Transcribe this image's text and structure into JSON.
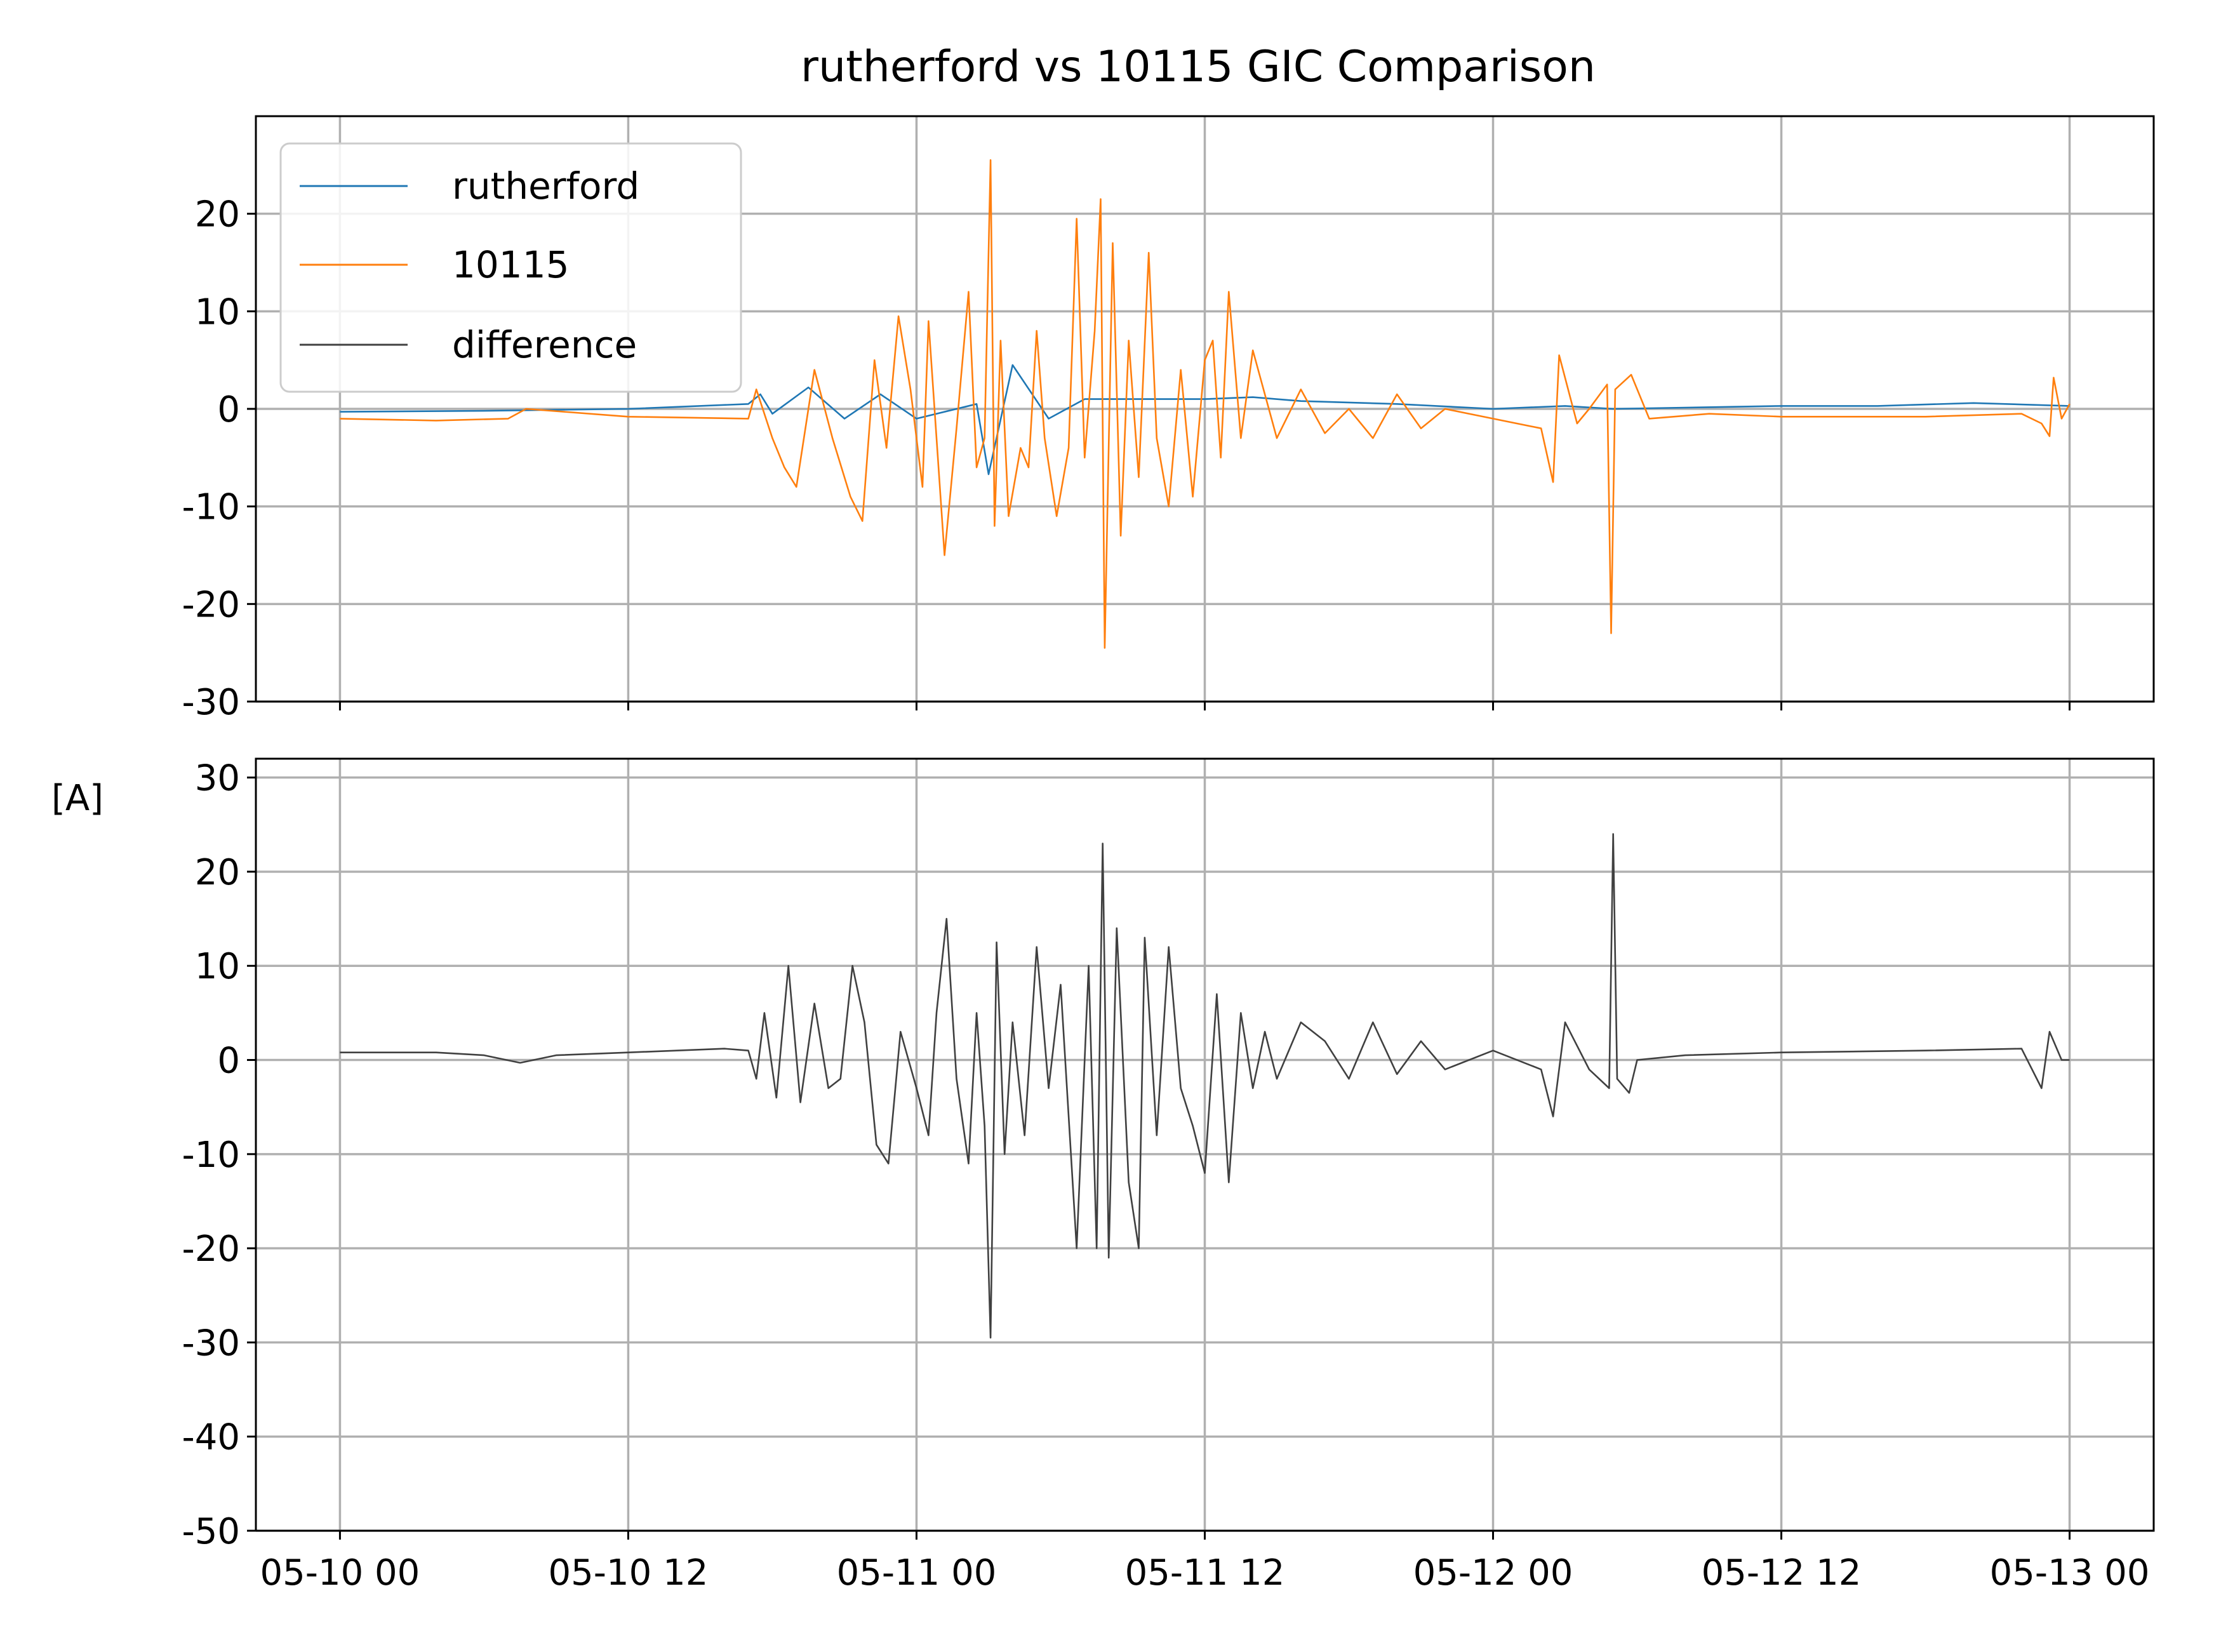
{
  "chart_data": {
    "title": "rutherford vs 10115 GIC Comparison",
    "ylabel": "[A]",
    "x_tick_labels": [
      "05-10 00",
      "05-10 12",
      "05-11 00",
      "05-11 12",
      "05-12 00",
      "05-12 12",
      "05-13 00"
    ],
    "x_range": [
      "2024-05-09 20:30",
      "2024-05-13 03:30"
    ],
    "grid": true,
    "legend_position": "upper-left",
    "panels": [
      {
        "type": "line",
        "position": "top",
        "ylim": [
          -30,
          30
        ],
        "y_ticks": [
          -30,
          -20,
          -10,
          0,
          10,
          20
        ],
        "y_tick_labels": [
          "-30",
          "-20",
          "-10",
          "0",
          "10",
          "20"
        ],
        "series": [
          {
            "name": "rutherford",
            "color": "#1f77b4",
            "points": [
              [
                "2024-05-10 00:00",
                -0.3
              ],
              [
                "2024-05-10 06:00",
                -0.2
              ],
              [
                "2024-05-10 12:00",
                0
              ],
              [
                "2024-05-10 17:00",
                0.5
              ],
              [
                "2024-05-10 17:30",
                1.5
              ],
              [
                "2024-05-10 18:00",
                -0.5
              ],
              [
                "2024-05-10 19:30",
                2.2
              ],
              [
                "2024-05-10 21:00",
                -1
              ],
              [
                "2024-05-10 22:30",
                1.5
              ],
              [
                "2024-05-11 00:00",
                -1
              ],
              [
                "2024-05-11 02:30",
                0.5
              ],
              [
                "2024-05-11 03:00",
                -6.7
              ],
              [
                "2024-05-11 04:00",
                4.5
              ],
              [
                "2024-05-11 05:30",
                -1
              ],
              [
                "2024-05-11 07:00",
                1
              ],
              [
                "2024-05-11 09:00",
                1
              ],
              [
                "2024-05-11 12:00",
                1
              ],
              [
                "2024-05-11 14:00",
                1.2
              ],
              [
                "2024-05-11 16:00",
                0.8
              ],
              [
                "2024-05-11 20:00",
                0.5
              ],
              [
                "2024-05-12 00:00",
                0
              ],
              [
                "2024-05-12 03:00",
                0.3
              ],
              [
                "2024-05-12 05:00",
                0
              ],
              [
                "2024-05-12 12:00",
                0.3
              ],
              [
                "2024-05-12 16:00",
                0.3
              ],
              [
                "2024-05-12 20:00",
                0.6
              ],
              [
                "2024-05-13 00:00",
                0.3
              ]
            ]
          },
          {
            "name": "10115",
            "color": "#ff7f0e",
            "points": [
              [
                "2024-05-10 00:00",
                -1
              ],
              [
                "2024-05-10 04:00",
                -1.2
              ],
              [
                "2024-05-10 07:00",
                -1
              ],
              [
                "2024-05-10 07:45",
                0
              ],
              [
                "2024-05-10 12:00",
                -0.8
              ],
              [
                "2024-05-10 17:00",
                -1
              ],
              [
                "2024-05-10 17:20",
                2
              ],
              [
                "2024-05-10 18:00",
                -3
              ],
              [
                "2024-05-10 18:30",
                -6
              ],
              [
                "2024-05-10 19:00",
                -8
              ],
              [
                "2024-05-10 19:45",
                4
              ],
              [
                "2024-05-10 20:30",
                -3
              ],
              [
                "2024-05-10 21:15",
                -9
              ],
              [
                "2024-05-10 21:45",
                -11.5
              ],
              [
                "2024-05-10 22:15",
                5
              ],
              [
                "2024-05-10 22:45",
                -4
              ],
              [
                "2024-05-10 23:15",
                9.5
              ],
              [
                "2024-05-10 23:45",
                2
              ],
              [
                "2024-05-11 00:15",
                -8
              ],
              [
                "2024-05-11 00:30",
                9
              ],
              [
                "2024-05-11 00:50",
                -3
              ],
              [
                "2024-05-11 01:10",
                -15
              ],
              [
                "2024-05-11 01:40",
                -2
              ],
              [
                "2024-05-11 02:10",
                12
              ],
              [
                "2024-05-11 02:30",
                -6
              ],
              [
                "2024-05-11 02:50",
                -3
              ],
              [
                "2024-05-11 03:05",
                25.5
              ],
              [
                "2024-05-11 03:15",
                -12
              ],
              [
                "2024-05-11 03:30",
                7
              ],
              [
                "2024-05-11 03:50",
                -11
              ],
              [
                "2024-05-11 04:20",
                -4
              ],
              [
                "2024-05-11 04:40",
                -6
              ],
              [
                "2024-05-11 05:00",
                8
              ],
              [
                "2024-05-11 05:20",
                -3
              ],
              [
                "2024-05-11 05:50",
                -11
              ],
              [
                "2024-05-11 06:20",
                -4
              ],
              [
                "2024-05-11 06:40",
                19.5
              ],
              [
                "2024-05-11 07:00",
                -5
              ],
              [
                "2024-05-11 07:25",
                8
              ],
              [
                "2024-05-11 07:40",
                21.5
              ],
              [
                "2024-05-11 07:50",
                -24.5
              ],
              [
                "2024-05-11 08:10",
                17
              ],
              [
                "2024-05-11 08:30",
                -13
              ],
              [
                "2024-05-11 08:50",
                7
              ],
              [
                "2024-05-11 09:15",
                -7
              ],
              [
                "2024-05-11 09:40",
                16
              ],
              [
                "2024-05-11 10:00",
                -3
              ],
              [
                "2024-05-11 10:30",
                -10
              ],
              [
                "2024-05-11 11:00",
                4
              ],
              [
                "2024-05-11 11:30",
                -9
              ],
              [
                "2024-05-11 12:00",
                5
              ],
              [
                "2024-05-11 12:20",
                7
              ],
              [
                "2024-05-11 12:40",
                -5
              ],
              [
                "2024-05-11 13:00",
                12
              ],
              [
                "2024-05-11 13:30",
                -3
              ],
              [
                "2024-05-11 14:00",
                6
              ],
              [
                "2024-05-11 15:00",
                -3
              ],
              [
                "2024-05-11 16:00",
                2
              ],
              [
                "2024-05-11 17:00",
                -2.5
              ],
              [
                "2024-05-11 18:00",
                0
              ],
              [
                "2024-05-11 19:00",
                -3
              ],
              [
                "2024-05-11 20:00",
                1.5
              ],
              [
                "2024-05-11 21:00",
                -2
              ],
              [
                "2024-05-11 22:00",
                0
              ],
              [
                "2024-05-12 00:00",
                -1
              ],
              [
                "2024-05-12 02:00",
                -2
              ],
              [
                "2024-05-12 02:30",
                -7.5
              ],
              [
                "2024-05-12 02:45",
                5.5
              ],
              [
                "2024-05-12 03:30",
                -1.5
              ],
              [
                "2024-05-12 04:00",
                0
              ],
              [
                "2024-05-12 04:45",
                2.5
              ],
              [
                "2024-05-12 04:55",
                -23
              ],
              [
                "2024-05-12 05:05",
                2
              ],
              [
                "2024-05-12 05:45",
                3.5
              ],
              [
                "2024-05-12 06:30",
                -1
              ],
              [
                "2024-05-12 09:00",
                -0.5
              ],
              [
                "2024-05-12 12:00",
                -0.8
              ],
              [
                "2024-05-12 18:00",
                -0.8
              ],
              [
                "2024-05-12 22:00",
                -0.5
              ],
              [
                "2024-05-12 22:50",
                -1.5
              ],
              [
                "2024-05-12 23:10",
                -2.8
              ],
              [
                "2024-05-12 23:20",
                3.2
              ],
              [
                "2024-05-12 23:40",
                -1
              ],
              [
                "2024-05-13 00:00",
                0.5
              ]
            ]
          }
        ]
      },
      {
        "type": "line",
        "position": "bottom",
        "ylim": [
          -50,
          32
        ],
        "y_ticks": [
          -50,
          -40,
          -30,
          -20,
          -10,
          0,
          10,
          20,
          30
        ],
        "y_tick_labels": [
          "-50",
          "-40",
          "-30",
          "-20",
          "-10",
          "0",
          "10",
          "20",
          "30"
        ],
        "series": [
          {
            "name": "difference",
            "color": "#404040",
            "points": [
              [
                "2024-05-10 00:00",
                0.8
              ],
              [
                "2024-05-10 04:00",
                0.8
              ],
              [
                "2024-05-10 06:00",
                0.5
              ],
              [
                "2024-05-10 07:30",
                -0.3
              ],
              [
                "2024-05-10 09:00",
                0.5
              ],
              [
                "2024-05-10 12:00",
                0.8
              ],
              [
                "2024-05-10 16:00",
                1.2
              ],
              [
                "2024-05-10 17:00",
                1
              ],
              [
                "2024-05-10 17:20",
                -2
              ],
              [
                "2024-05-10 17:40",
                5
              ],
              [
                "2024-05-10 18:10",
                -4
              ],
              [
                "2024-05-10 18:40",
                10
              ],
              [
                "2024-05-10 19:10",
                -4.5
              ],
              [
                "2024-05-10 19:45",
                6
              ],
              [
                "2024-05-10 20:20",
                -3
              ],
              [
                "2024-05-10 20:50",
                -2
              ],
              [
                "2024-05-10 21:20",
                10
              ],
              [
                "2024-05-10 21:50",
                4
              ],
              [
                "2024-05-10 22:20",
                -9
              ],
              [
                "2024-05-10 22:50",
                -11
              ],
              [
                "2024-05-10 23:20",
                3
              ],
              [
                "2024-05-11 00:00",
                -3
              ],
              [
                "2024-05-11 00:30",
                -8
              ],
              [
                "2024-05-11 00:50",
                5
              ],
              [
                "2024-05-11 01:15",
                15
              ],
              [
                "2024-05-11 01:40",
                -2
              ],
              [
                "2024-05-11 02:10",
                -11
              ],
              [
                "2024-05-11 02:30",
                5
              ],
              [
                "2024-05-11 02:50",
                -7
              ],
              [
                "2024-05-11 03:05",
                -29.5
              ],
              [
                "2024-05-11 03:20",
                12.5
              ],
              [
                "2024-05-11 03:40",
                -10
              ],
              [
                "2024-05-11 04:00",
                4
              ],
              [
                "2024-05-11 04:30",
                -8
              ],
              [
                "2024-05-11 05:00",
                12
              ],
              [
                "2024-05-11 05:30",
                -3
              ],
              [
                "2024-05-11 06:00",
                8
              ],
              [
                "2024-05-11 06:40",
                -20
              ],
              [
                "2024-05-11 07:10",
                10
              ],
              [
                "2024-05-11 07:30",
                -20
              ],
              [
                "2024-05-11 07:45",
                23
              ],
              [
                "2024-05-11 08:00",
                -21
              ],
              [
                "2024-05-11 08:20",
                14
              ],
              [
                "2024-05-11 08:50",
                -13
              ],
              [
                "2024-05-11 09:15",
                -20
              ],
              [
                "2024-05-11 09:30",
                13
              ],
              [
                "2024-05-11 10:00",
                -8
              ],
              [
                "2024-05-11 10:30",
                12
              ],
              [
                "2024-05-11 11:00",
                -3
              ],
              [
                "2024-05-11 11:30",
                -7
              ],
              [
                "2024-05-11 12:00",
                -12
              ],
              [
                "2024-05-11 12:30",
                7
              ],
              [
                "2024-05-11 13:00",
                -13
              ],
              [
                "2024-05-11 13:30",
                5
              ],
              [
                "2024-05-11 14:00",
                -3
              ],
              [
                "2024-05-11 14:30",
                3
              ],
              [
                "2024-05-11 15:00",
                -2
              ],
              [
                "2024-05-11 16:00",
                4
              ],
              [
                "2024-05-11 17:00",
                2
              ],
              [
                "2024-05-11 18:00",
                -2
              ],
              [
                "2024-05-11 19:00",
                4
              ],
              [
                "2024-05-11 20:00",
                -1.5
              ],
              [
                "2024-05-11 21:00",
                2
              ],
              [
                "2024-05-11 22:00",
                -1
              ],
              [
                "2024-05-12 00:00",
                1
              ],
              [
                "2024-05-12 02:00",
                -1
              ],
              [
                "2024-05-12 02:30",
                -6
              ],
              [
                "2024-05-12 03:00",
                4
              ],
              [
                "2024-05-12 04:00",
                -1
              ],
              [
                "2024-05-12 04:50",
                -3
              ],
              [
                "2024-05-12 05:00",
                24
              ],
              [
                "2024-05-12 05:10",
                -2
              ],
              [
                "2024-05-12 05:40",
                -3.5
              ],
              [
                "2024-05-12 06:00",
                0
              ],
              [
                "2024-05-12 08:00",
                0.5
              ],
              [
                "2024-05-12 12:00",
                0.8
              ],
              [
                "2024-05-12 18:00",
                1
              ],
              [
                "2024-05-12 22:00",
                1.2
              ],
              [
                "2024-05-12 22:50",
                -3
              ],
              [
                "2024-05-12 23:10",
                3
              ],
              [
                "2024-05-12 23:40",
                0
              ],
              [
                "2024-05-13 00:00",
                0
              ]
            ]
          }
        ]
      }
    ]
  }
}
